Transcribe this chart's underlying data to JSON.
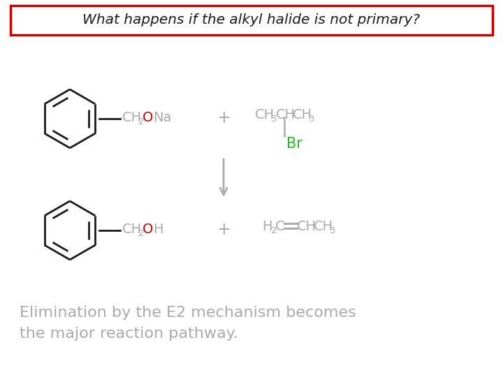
{
  "title": "What happens if the alkyl halide is not primary?",
  "title_box_color": "#cc0000",
  "title_bg": "#ffffff",
  "title_fontsize": 14.5,
  "text_color": "#aaaaaa",
  "black_color": "#1a1a1a",
  "red_color": "#cc0000",
  "green_color": "#22bb22",
  "bg_color": "#ffffff",
  "footer_line1": "Elimination by the E2 mechanism becomes",
  "footer_line2": "the major reaction pathway."
}
